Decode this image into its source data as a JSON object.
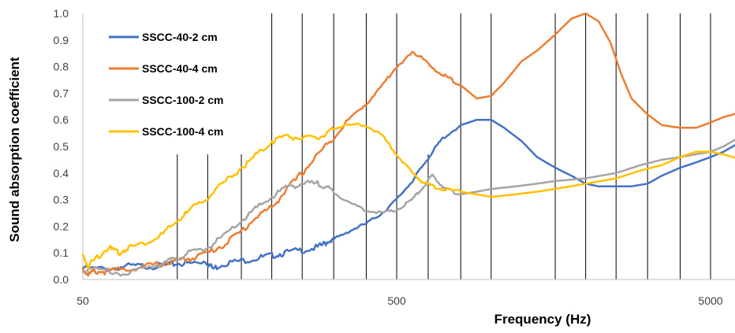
{
  "chart_data": {
    "type": "line",
    "title": "",
    "xlabel": "Frequency (Hz)",
    "ylabel": "Sound absorption coefficient",
    "x_scale": "log",
    "xlim": [
      50,
      6300
    ],
    "ylim": [
      0,
      1.0
    ],
    "x_ticks": [
      50,
      500,
      5000
    ],
    "x_tick_labels": [
      "50",
      "500",
      "5000"
    ],
    "y_ticks": [
      0,
      0.1,
      0.2,
      0.3,
      0.4,
      0.5,
      0.6,
      0.7,
      0.8,
      0.9,
      1.0
    ],
    "y_tick_labels": [
      "0.0",
      "0.1",
      "0.2",
      "0.3",
      "0.4",
      "0.5",
      "0.6",
      "0.7",
      "0.8",
      "0.9",
      "1.0"
    ],
    "vertical_gridlines": {
      "full_height_hz": [
        200,
        250,
        315,
        400,
        500,
        800,
        1000,
        1600,
        2000,
        2500,
        3150,
        4000,
        5000
      ],
      "partial_height_hz": [
        100,
        125,
        160,
        630
      ],
      "partial_top_value": 0.47
    },
    "legend_position": "top-left",
    "series": [
      {
        "name": "SSCC-40-2 cm",
        "color": "#4472C4",
        "x": [
          50,
          60,
          70,
          80,
          90,
          100,
          110,
          123,
          130,
          140,
          160,
          180,
          200,
          220,
          250,
          280,
          300,
          315,
          350,
          400,
          450,
          500,
          560,
          600,
          650,
          700,
          800,
          900,
          1000,
          1100,
          1250,
          1400,
          1600,
          1800,
          2000,
          2200,
          2500,
          2800,
          3150,
          3500,
          4000,
          4500,
          5000,
          5500,
          6300
        ],
        "values": [
          0.04,
          0.04,
          0.05,
          0.05,
          0.05,
          0.06,
          0.06,
          0.07,
          0.04,
          0.06,
          0.07,
          0.08,
          0.09,
          0.1,
          0.11,
          0.12,
          0.14,
          0.15,
          0.18,
          0.21,
          0.25,
          0.3,
          0.37,
          0.42,
          0.48,
          0.53,
          0.58,
          0.6,
          0.6,
          0.57,
          0.52,
          0.46,
          0.42,
          0.39,
          0.36,
          0.35,
          0.35,
          0.35,
          0.36,
          0.39,
          0.42,
          0.44,
          0.46,
          0.48,
          0.52
        ]
      },
      {
        "name": "SSCC-40-4 cm",
        "color": "#ED7D31",
        "x": [
          50,
          52,
          55,
          60,
          70,
          80,
          90,
          100,
          110,
          125,
          140,
          160,
          180,
          200,
          220,
          250,
          280,
          315,
          350,
          400,
          450,
          500,
          560,
          600,
          650,
          700,
          750,
          800,
          900,
          1000,
          1100,
          1250,
          1400,
          1600,
          1800,
          2000,
          2200,
          2400,
          2600,
          2800,
          3150,
          3500,
          4000,
          4500,
          5000,
          5500,
          6300
        ],
        "values": [
          0.04,
          0.02,
          0.03,
          0.03,
          0.04,
          0.05,
          0.06,
          0.07,
          0.08,
          0.1,
          0.13,
          0.18,
          0.24,
          0.27,
          0.33,
          0.4,
          0.47,
          0.53,
          0.6,
          0.66,
          0.73,
          0.8,
          0.85,
          0.84,
          0.79,
          0.77,
          0.75,
          0.73,
          0.68,
          0.69,
          0.74,
          0.82,
          0.86,
          0.92,
          0.98,
          1.0,
          0.97,
          0.89,
          0.77,
          0.68,
          0.62,
          0.58,
          0.57,
          0.57,
          0.59,
          0.61,
          0.63
        ]
      },
      {
        "name": "SSCC-100-2 cm",
        "color": "#A5A5A5",
        "x": [
          50,
          60,
          70,
          80,
          90,
          100,
          110,
          125,
          140,
          160,
          180,
          200,
          225,
          250,
          280,
          300,
          315,
          350,
          400,
          450,
          500,
          560,
          600,
          650,
          700,
          750,
          800,
          900,
          1000,
          1200,
          1400,
          1600,
          2000,
          2500,
          3000,
          3500,
          4000,
          5000,
          5500,
          6300
        ],
        "values": [
          0.04,
          0.03,
          0.02,
          0.05,
          0.06,
          0.08,
          0.1,
          0.12,
          0.16,
          0.22,
          0.27,
          0.31,
          0.35,
          0.36,
          0.36,
          0.35,
          0.33,
          0.29,
          0.26,
          0.25,
          0.26,
          0.3,
          0.34,
          0.39,
          0.35,
          0.33,
          0.32,
          0.33,
          0.34,
          0.35,
          0.36,
          0.37,
          0.38,
          0.4,
          0.43,
          0.45,
          0.46,
          0.48,
          0.5,
          0.54
        ]
      },
      {
        "name": "SSCC-100-4 cm",
        "color": "#FFC000",
        "x": [
          50,
          52,
          55,
          60,
          65,
          70,
          80,
          90,
          100,
          110,
          125,
          140,
          160,
          180,
          200,
          225,
          250,
          280,
          300,
          315,
          350,
          400,
          450,
          500,
          560,
          600,
          650,
          700,
          800,
          900,
          1000,
          1200,
          1400,
          1600,
          2000,
          2500,
          3000,
          3500,
          4000,
          4500,
          5000,
          5500,
          6300
        ],
        "values": [
          0.09,
          0.05,
          0.08,
          0.12,
          0.1,
          0.12,
          0.14,
          0.17,
          0.22,
          0.26,
          0.31,
          0.36,
          0.42,
          0.47,
          0.52,
          0.54,
          0.53,
          0.53,
          0.55,
          0.57,
          0.58,
          0.58,
          0.54,
          0.47,
          0.4,
          0.37,
          0.35,
          0.34,
          0.33,
          0.32,
          0.31,
          0.32,
          0.33,
          0.34,
          0.36,
          0.38,
          0.41,
          0.43,
          0.46,
          0.48,
          0.48,
          0.47,
          0.45
        ]
      }
    ]
  }
}
